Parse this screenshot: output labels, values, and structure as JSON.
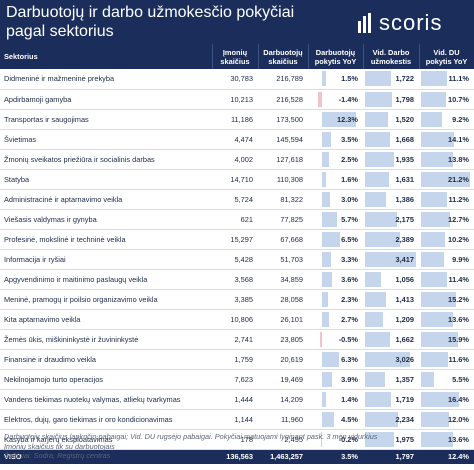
{
  "title": "Darbuotojų ir darbo užmokesčio pokyčiai pagal sektorius",
  "logo": {
    "name": "scoris",
    "icon": "bar-chart-logo-icon"
  },
  "colors": {
    "header": "#1b2d5b",
    "positive_bar": "#c5d6ec",
    "negative_bar": "#f3c4c7"
  },
  "chart_data": {
    "type": "table",
    "columns": {
      "sector": "Sektorius",
      "companies": "Įmonių skaičius",
      "employees": "Darbuotojų skaičius",
      "emp_change": "Darbuotojų pokytis YoY",
      "avg_wage": "Vid. Darbo užmokestis",
      "wage_change": "Vid. DU pokytis YoY"
    },
    "emp_change_range": [
      -5,
      15
    ],
    "avg_wage_range": [
      0,
      3500
    ],
    "wage_change_range": [
      0,
      22
    ],
    "rows": [
      {
        "sector": "Didmeninė ir mažmeninė prekyba",
        "companies": "30,783",
        "employees": "216,789",
        "emp_change": 1.5,
        "emp_change_label": "1.5%",
        "avg_wage": 1722,
        "avg_wage_label": "1,722",
        "wage_change": 11.1,
        "wage_change_label": "11.1%"
      },
      {
        "sector": "Apdirbamoji gamyba",
        "companies": "10,213",
        "employees": "216,528",
        "emp_change": -1.4,
        "emp_change_label": "-1.4%",
        "avg_wage": 1798,
        "avg_wage_label": "1,798",
        "wage_change": 10.7,
        "wage_change_label": "10.7%"
      },
      {
        "sector": "Transportas ir saugojimas",
        "companies": "11,186",
        "employees": "173,500",
        "emp_change": 12.3,
        "emp_change_label": "12.3%",
        "avg_wage": 1520,
        "avg_wage_label": "1,520",
        "wage_change": 9.2,
        "wage_change_label": "9.2%"
      },
      {
        "sector": "Švietimas",
        "companies": "4,474",
        "employees": "145,594",
        "emp_change": 3.5,
        "emp_change_label": "3.5%",
        "avg_wage": 1668,
        "avg_wage_label": "1,668",
        "wage_change": 14.1,
        "wage_change_label": "14.1%"
      },
      {
        "sector": "Žmonių sveikatos priežiūra ir socialinis darbas",
        "companies": "4,002",
        "employees": "127,618",
        "emp_change": 2.5,
        "emp_change_label": "2.5%",
        "avg_wage": 1935,
        "avg_wage_label": "1,935",
        "wage_change": 13.8,
        "wage_change_label": "13.8%"
      },
      {
        "sector": "Statyba",
        "companies": "14,710",
        "employees": "110,308",
        "emp_change": 1.6,
        "emp_change_label": "1.6%",
        "avg_wage": 1631,
        "avg_wage_label": "1,631",
        "wage_change": 21.2,
        "wage_change_label": "21.2%"
      },
      {
        "sector": "Administracinė ir aptarnavimo veikla",
        "companies": "5,724",
        "employees": "81,322",
        "emp_change": 3.0,
        "emp_change_label": "3.0%",
        "avg_wage": 1386,
        "avg_wage_label": "1,386",
        "wage_change": 11.2,
        "wage_change_label": "11.2%"
      },
      {
        "sector": "Viešasis valdymas ir gynyba",
        "companies": "621",
        "employees": "77,825",
        "emp_change": 5.7,
        "emp_change_label": "5.7%",
        "avg_wage": 2175,
        "avg_wage_label": "2,175",
        "wage_change": 12.7,
        "wage_change_label": "12.7%"
      },
      {
        "sector": "Profesinė, mokslinė ir techninė veikla",
        "companies": "15,297",
        "employees": "67,668",
        "emp_change": 6.5,
        "emp_change_label": "6.5%",
        "avg_wage": 2389,
        "avg_wage_label": "2,389",
        "wage_change": 10.2,
        "wage_change_label": "10.2%"
      },
      {
        "sector": "Informacija ir ryšiai",
        "companies": "5,428",
        "employees": "51,703",
        "emp_change": 3.3,
        "emp_change_label": "3.3%",
        "avg_wage": 3417,
        "avg_wage_label": "3,417",
        "wage_change": 9.9,
        "wage_change_label": "9.9%"
      },
      {
        "sector": "Apgyvendinimo ir maitinimo paslaugų veikla",
        "companies": "3,568",
        "employees": "34,859",
        "emp_change": 3.6,
        "emp_change_label": "3.6%",
        "avg_wage": 1056,
        "avg_wage_label": "1,056",
        "wage_change": 11.4,
        "wage_change_label": "11.4%"
      },
      {
        "sector": "Meninė, pramogų ir poilsio organizavimo veikla",
        "companies": "3,385",
        "employees": "28,058",
        "emp_change": 2.3,
        "emp_change_label": "2.3%",
        "avg_wage": 1413,
        "avg_wage_label": "1,413",
        "wage_change": 15.2,
        "wage_change_label": "15.2%"
      },
      {
        "sector": "Kita aptarnavimo veikla",
        "companies": "10,806",
        "employees": "26,101",
        "emp_change": 2.7,
        "emp_change_label": "2.7%",
        "avg_wage": 1209,
        "avg_wage_label": "1,209",
        "wage_change": 13.6,
        "wage_change_label": "13.6%"
      },
      {
        "sector": "Žemės ūkis, miškininkystė ir žuvininkystė",
        "companies": "2,741",
        "employees": "23,805",
        "emp_change": -0.5,
        "emp_change_label": "-0.5%",
        "avg_wage": 1662,
        "avg_wage_label": "1,662",
        "wage_change": 15.9,
        "wage_change_label": "15.9%"
      },
      {
        "sector": "Finansinė ir draudimo veikla",
        "companies": "1,759",
        "employees": "20,619",
        "emp_change": 6.3,
        "emp_change_label": "6.3%",
        "avg_wage": 3026,
        "avg_wage_label": "3,026",
        "wage_change": 11.6,
        "wage_change_label": "11.6%"
      },
      {
        "sector": "Nekilnojamojo turto operacijos",
        "companies": "7,623",
        "employees": "19,469",
        "emp_change": 3.9,
        "emp_change_label": "3.9%",
        "avg_wage": 1357,
        "avg_wage_label": "1,357",
        "wage_change": 5.5,
        "wage_change_label": "5.5%"
      },
      {
        "sector": "Vandens tiekimas nuotekų valymas, atliekų tvarkymas",
        "companies": "1,444",
        "employees": "14,209",
        "emp_change": 1.4,
        "emp_change_label": "1.4%",
        "avg_wage": 1719,
        "avg_wage_label": "1,719",
        "wage_change": 16.4,
        "wage_change_label": "16.4%"
      },
      {
        "sector": "Elektros, dujų, garo tiekimas ir oro kondicionavimas",
        "companies": "1,144",
        "employees": "11,960",
        "emp_change": 4.5,
        "emp_change_label": "4.5%",
        "avg_wage": 2234,
        "avg_wage_label": "2,234",
        "wage_change": 12.0,
        "wage_change_label": "12.0%"
      },
      {
        "sector": "Kasyba ir karjerų eksploatavimas",
        "companies": "178",
        "employees": "2,495",
        "emp_change": -0.2,
        "emp_change_label": "-0.2%",
        "avg_wage": 1975,
        "avg_wage_label": "1,975",
        "wage_change": 13.6,
        "wage_change_label": "13.6%"
      }
    ],
    "total": {
      "sector": "VISO",
      "companies": "136,563",
      "employees": "1,463,257",
      "emp_change_label": "3.5%",
      "avg_wage_label": "1,797",
      "wage_change_label": "12.4%"
    }
  },
  "footnote": {
    "line1": "Darbuotojų skaičius lapkričio pabaigai; Vid. DU rugsėjo pabaigai. Pokyčiai matuojami lyginant pask. 3 mėn vidurkius",
    "line2": "Įmonių skaičius tik su darbuotojais",
    "line3": "Šaltiniai: Sodra, Registrų centras"
  }
}
